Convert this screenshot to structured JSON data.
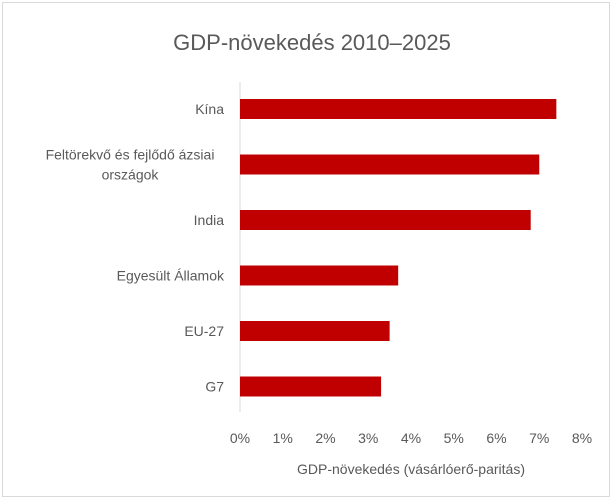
{
  "chart_data": {
    "type": "bar",
    "orientation": "horizontal",
    "title": "GDP-növekedés 2010–2025",
    "xlabel": "GDP-növekedés (vásárlóerő-paritás)",
    "ylabel": "",
    "categories": [
      [
        "Kína"
      ],
      [
        "Feltörekvő és fejlődő ázsiai",
        "országok"
      ],
      [
        "India"
      ],
      [
        "Egyesült Államok"
      ],
      [
        "EU-27"
      ],
      [
        "G7"
      ]
    ],
    "values": [
      7.4,
      7.0,
      6.8,
      3.7,
      3.5,
      3.3
    ],
    "xlim": [
      0,
      8
    ],
    "ticks": [
      0,
      1,
      2,
      3,
      4,
      5,
      6,
      7,
      8
    ],
    "tick_labels": [
      "0%",
      "1%",
      "2%",
      "3%",
      "4%",
      "5%",
      "6%",
      "7%",
      "8%"
    ],
    "unit": "%",
    "bar_color": "#c00000",
    "grid": false,
    "legend": "none"
  }
}
